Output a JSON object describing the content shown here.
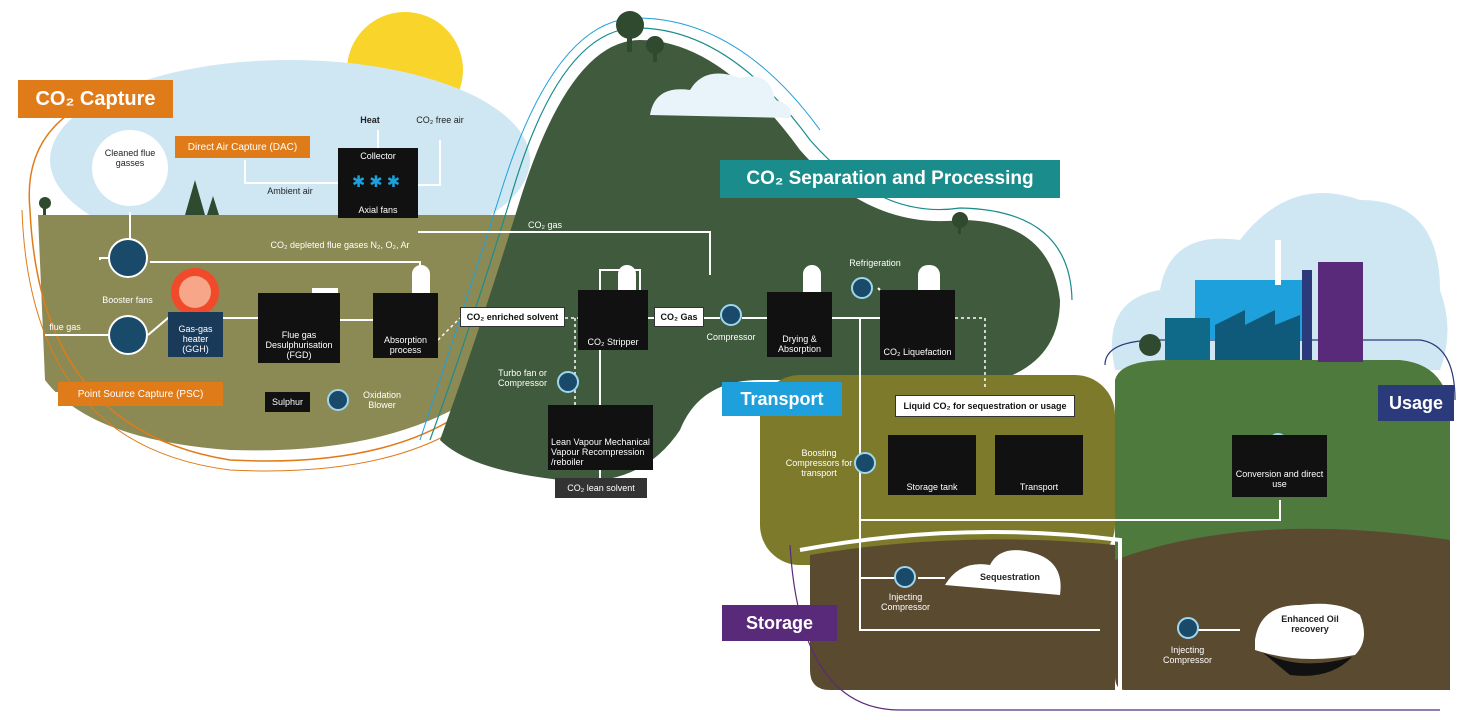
{
  "capture": {
    "title": "CO₂ Capture",
    "dac": "Direct Air Capture (DAC)",
    "heat": "Heat",
    "free_air": "CO₂ free air",
    "collector": "Collector",
    "axial_fans": "Axial fans",
    "ambient_air": "Ambient air",
    "cleaned": "Cleaned flue gasses",
    "booster": "Booster fans",
    "flue_gas": "flue gas",
    "ggh": "Gas-gas heater (GGH)",
    "fgd": "Flue gas Desulphurisation (FGD)",
    "absorption": "Absorption process",
    "sulphur": "Sulphur",
    "oxidation": "Oxidation Blower",
    "psc": "Point Source Capture (PSC)",
    "depleted": "CO₂ depleted flue gases N₂, O₂, Ar"
  },
  "separation": {
    "title": "CO₂ Separation and Processing",
    "co2_gas_line": "CO₂ gas",
    "enriched": "CO₂ enriched solvent",
    "stripper": "CO₂ Stripper",
    "co2_gas": "CO₂ Gas",
    "compressor": "Compressor",
    "drying": "Drying & Absorption",
    "refrigeration": "Refrigeration",
    "liquefaction": "CO₂ Liquefaction",
    "turbo": "Turbo fan or Compressor",
    "lean_vapour": "Lean Vapour Mechanical Vapour Recompression /reboiler",
    "lean_solvent": "CO₂ lean solvent"
  },
  "transport": {
    "title": "Transport",
    "liquid": "Liquid CO₂ for sequestration or usage",
    "boosting": "Boosting Compressors for transport",
    "storage_tank": "Storage tank",
    "transport": "Transport"
  },
  "usage": {
    "title": "Usage",
    "conversion": "Conversion and direct use"
  },
  "storage": {
    "title": "Storage",
    "injecting_1": "Injecting Compressor",
    "sequestration": "Sequestration",
    "eor": "Enhanced Oil recovery",
    "injecting_2": "Injecting Compressor"
  }
}
